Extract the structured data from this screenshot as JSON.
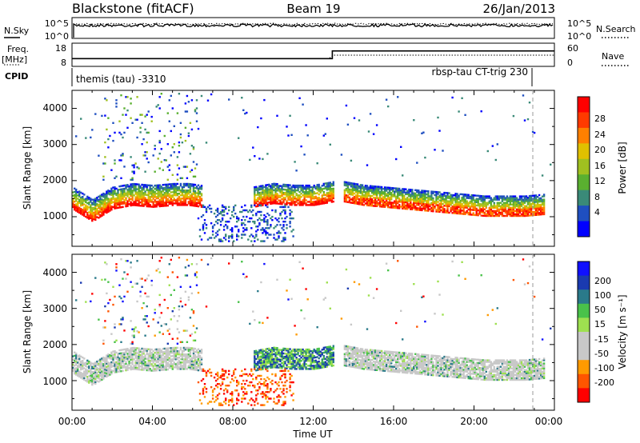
{
  "header": {
    "station": "Blackstone (fitACF)",
    "beam": "Beam 19",
    "date": "26/Jan/2013"
  },
  "ancillary": {
    "nsky_label": "N.Sky",
    "nsearch_label": "N.Search",
    "noise_ticks": [
      "10^5",
      "10^0"
    ],
    "noise_ticks_right": [
      "10^5",
      "10^0"
    ],
    "freq_label": "Freq.",
    "freq_unit": "[MHz]",
    "freq_ticks": [
      "18",
      "8"
    ],
    "nave_label": "Nave",
    "nave_ticks": [
      "60",
      "0"
    ],
    "cpid_label": "CPID",
    "cpid_left": "themis (tau) -3310",
    "cpid_right": "rbsp-tau CT-trig 230",
    "freq_series": {
      "x": [
        0.0,
        12.95,
        12.95,
        24.0
      ],
      "y": [
        10.0,
        10.0,
        15.0,
        15.0
      ]
    }
  },
  "colors": {
    "power": [
      "#0000ff",
      "#1f4fc0",
      "#3a8a78",
      "#5ab030",
      "#a0c020",
      "#e0c000",
      "#ff8000",
      "#ff3a00",
      "#ff0000"
    ],
    "velocity": [
      "#ff0000",
      "#ff5500",
      "#ff9a00",
      "#c8c8c8",
      "#c8c8c8",
      "#9ee050",
      "#49c24a",
      "#2a7a8a",
      "#1a3ab0",
      "#1010ff"
    ]
  },
  "chart_data": [
    {
      "type": "heatmap",
      "title": "",
      "xlabel": "Time UT",
      "ylabel": "Slant Range [km]",
      "xticks": [
        "00:00",
        "04:00",
        "08:00",
        "12:00",
        "16:00",
        "20:00",
        "00:00"
      ],
      "yticks": [
        "1000",
        "2000",
        "3000",
        "4000"
      ],
      "xlim": [
        0,
        24
      ],
      "ylim": [
        180,
        4500
      ],
      "colorbar": {
        "label": "Power [dB]",
        "ticks": [
          "28",
          "24",
          "20",
          "16",
          "12",
          "8",
          "4"
        ]
      },
      "bands": [
        {
          "t": [
            0.0,
            1.0,
            2.0,
            3.0,
            4.0,
            5.0,
            5.8,
            6.4
          ],
          "r": [
            1550,
            1200,
            1550,
            1650,
            1600,
            1650,
            1650,
            1600
          ]
        },
        {
          "t": [
            9.0,
            10.0,
            11.0,
            12.0,
            13.0
          ],
          "r": [
            1550,
            1650,
            1600,
            1600,
            1700
          ]
        },
        {
          "t": [
            13.5,
            14.5,
            15.5,
            16.5,
            17.5,
            18.5,
            19.5,
            20.5,
            21.5,
            22.5,
            23.5
          ],
          "r": [
            1700,
            1600,
            1550,
            1500,
            1450,
            1400,
            1350,
            1300,
            1300,
            1300,
            1350
          ]
        }
      ]
    },
    {
      "type": "heatmap",
      "title": "",
      "xlabel": "Time UT",
      "ylabel": "Slant Range [km]",
      "xticks": [
        "00:00",
        "04:00",
        "08:00",
        "12:00",
        "16:00",
        "20:00",
        "00:00"
      ],
      "yticks": [
        "1000",
        "2000",
        "3000",
        "4000"
      ],
      "xlim": [
        0,
        24
      ],
      "ylim": [
        180,
        4500
      ],
      "colorbar": {
        "label": "Velocity [m s⁻¹]",
        "ticks": [
          "200",
          "100",
          "50",
          "15",
          "-15",
          "-50",
          "-100",
          "-200"
        ]
      }
    }
  ]
}
